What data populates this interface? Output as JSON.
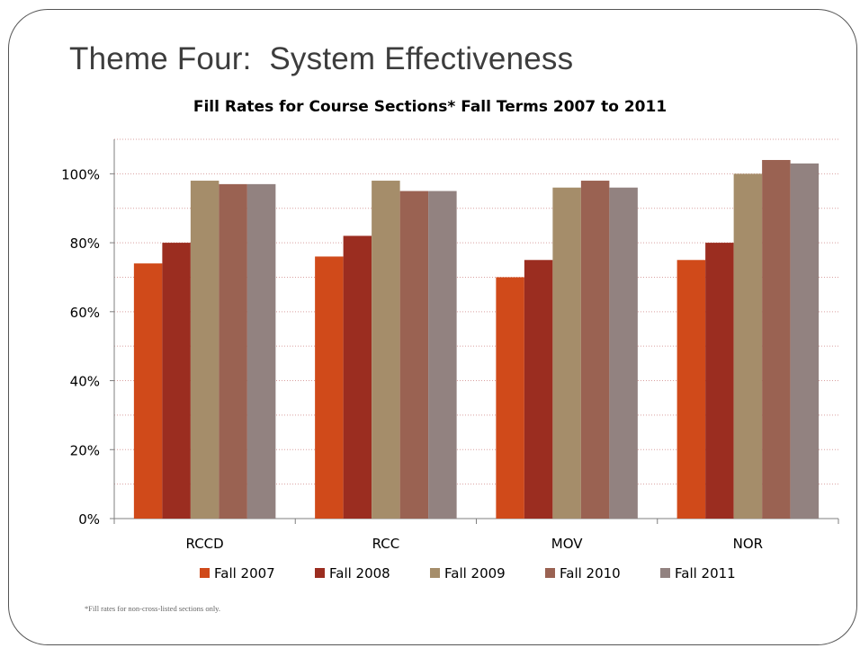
{
  "slide": {
    "title": "Theme Four:  System Effectiveness",
    "footnote": "*Fill rates for non-cross-listed sections only."
  },
  "chart_data": {
    "type": "bar",
    "title": "Fill Rates for Course Sections* Fall Terms 2007 to 2011",
    "xlabel": "",
    "ylabel": "",
    "categories": [
      "RCCD",
      "RCC",
      "MOV",
      "NOR"
    ],
    "ylim": [
      0,
      110
    ],
    "yticks": [
      0,
      20,
      40,
      60,
      80,
      100
    ],
    "ytick_labels": [
      "0%",
      "20%",
      "40%",
      "60%",
      "80%",
      "100%"
    ],
    "grid": "dotted horizontal every 10%",
    "legend_position": "bottom",
    "series": [
      {
        "name": "Fall 2007",
        "color": "#d04a1a",
        "values": [
          74,
          76,
          70,
          75
        ]
      },
      {
        "name": "Fall 2008",
        "color": "#9b2d20",
        "values": [
          80,
          82,
          75,
          80
        ]
      },
      {
        "name": "Fall 2009",
        "color": "#a58d6a",
        "values": [
          98,
          98,
          96,
          100
        ]
      },
      {
        "name": "Fall 2010",
        "color": "#9a6252",
        "values": [
          97,
          95,
          98,
          104
        ]
      },
      {
        "name": "Fall 2011",
        "color": "#928280",
        "values": [
          97,
          95,
          96,
          103
        ]
      }
    ]
  }
}
